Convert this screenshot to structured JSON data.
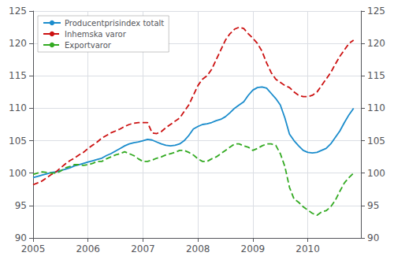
{
  "chart_data": {
    "type": "line",
    "x": [
      2005,
      2005.0833333333,
      2005.1666666667,
      2005.25,
      2005.3333333333,
      2005.4166666667,
      2005.5,
      2005.5833333333,
      2005.6666666667,
      2005.75,
      2005.8333333333,
      2005.9166666667,
      2006,
      2006.0833333333,
      2006.1666666667,
      2006.25,
      2006.3333333333,
      2006.4166666667,
      2006.5,
      2006.5833333333,
      2006.6666666667,
      2006.75,
      2006.8333333333,
      2006.9166666667,
      2007,
      2007.0833333333,
      2007.1666666667,
      2007.25,
      2007.3333333333,
      2007.4166666667,
      2007.5,
      2007.5833333333,
      2007.6666666667,
      2007.75,
      2007.8333333333,
      2007.9166666667,
      2008,
      2008.0833333333,
      2008.1666666667,
      2008.25,
      2008.3333333333,
      2008.4166666667,
      2008.5,
      2008.5833333333,
      2008.6666666667,
      2008.75,
      2008.8333333333,
      2008.9166666667,
      2009,
      2009.0833333333,
      2009.1666666667,
      2009.25,
      2009.3333333333,
      2009.4166666667,
      2009.5,
      2009.5833333333,
      2009.6666666667,
      2009.75,
      2009.8333333333,
      2009.9166666667,
      2010,
      2010.0833333333,
      2010.1666666667,
      2010.25,
      2010.3333333333,
      2010.4166666667,
      2010.5,
      2010.5833333333,
      2010.6666666667,
      2010.75,
      2010.8333333333
    ],
    "xlim": [
      2005,
      2010.9666666667
    ],
    "xticks": [
      2005,
      2006,
      2007,
      2008,
      2009,
      2010
    ],
    "ylim": [
      90,
      125
    ],
    "yticks": [
      90,
      95,
      100,
      105,
      110,
      115,
      120,
      125
    ],
    "y2lim": [
      90,
      125
    ],
    "y2ticks": [
      90,
      95,
      100,
      105,
      110,
      115,
      120,
      125
    ],
    "grid": true,
    "legend": "upper left",
    "series": [
      {
        "name": "Producentprisindex totalt",
        "color": "#1a8ccc",
        "line_style": "solid",
        "values": [
          99.3,
          99.5,
          99.7,
          99.9,
          100.1,
          100.2,
          100.4,
          100.6,
          100.8,
          101.1,
          101.3,
          101.5,
          101.7,
          101.9,
          102.1,
          102.3,
          102.7,
          103.0,
          103.4,
          103.8,
          104.2,
          104.5,
          104.7,
          104.8,
          105.0,
          105.2,
          105.1,
          104.8,
          104.5,
          104.3,
          104.2,
          104.3,
          104.5,
          105.0,
          105.8,
          106.8,
          107.2,
          107.5,
          107.6,
          107.8,
          108.1,
          108.3,
          108.7,
          109.3,
          110.0,
          110.5,
          111.0,
          112.0,
          112.8,
          113.2,
          113.3,
          113.1,
          112.3,
          111.5,
          110.5,
          108.5,
          106.0,
          105.0,
          104.2,
          103.5,
          103.2,
          103.1,
          103.2,
          103.5,
          103.8,
          104.5,
          105.5,
          106.5,
          107.8,
          109.0,
          110.0
        ]
      },
      {
        "name": "Inhemska varor",
        "color": "#cc1111",
        "line_style": "dashed",
        "values": [
          98.2,
          98.5,
          98.8,
          99.3,
          99.8,
          100.2,
          100.8,
          101.4,
          101.9,
          102.3,
          102.8,
          103.2,
          103.8,
          104.3,
          104.8,
          105.4,
          105.8,
          106.2,
          106.5,
          106.8,
          107.2,
          107.5,
          107.7,
          107.8,
          107.8,
          107.8,
          106.2,
          106.1,
          106.4,
          107.0,
          107.5,
          108.0,
          108.5,
          109.5,
          110.5,
          112.0,
          113.5,
          114.5,
          115.0,
          116.0,
          117.5,
          119.0,
          120.5,
          121.5,
          122.2,
          122.5,
          122.3,
          121.5,
          120.8,
          120.0,
          118.8,
          117.0,
          115.5,
          114.5,
          114.0,
          113.5,
          113.2,
          112.5,
          112.0,
          111.8,
          111.8,
          112.0,
          112.5,
          113.5,
          114.5,
          115.5,
          116.8,
          118.0,
          119.0,
          120.0,
          120.5
        ]
      },
      {
        "name": "Exportvaror",
        "color": "#33aa22",
        "line_style": "dashed",
        "values": [
          99.8,
          100.0,
          100.2,
          100.1,
          100.0,
          100.0,
          100.3,
          100.8,
          101.0,
          101.3,
          101.3,
          101.2,
          101.3,
          101.5,
          101.8,
          101.8,
          102.2,
          102.5,
          102.8,
          103.0,
          103.3,
          103.0,
          102.7,
          102.2,
          101.8,
          101.8,
          102.0,
          102.3,
          102.5,
          102.8,
          103.0,
          103.2,
          103.5,
          103.5,
          103.2,
          102.8,
          102.2,
          101.8,
          101.8,
          102.2,
          102.5,
          103.0,
          103.5,
          104.0,
          104.5,
          104.5,
          104.2,
          104.0,
          103.5,
          103.8,
          104.2,
          104.5,
          104.5,
          104.3,
          103.0,
          101.0,
          97.8,
          96.0,
          95.5,
          94.8,
          94.3,
          93.8,
          93.5,
          94.0,
          94.2,
          94.8,
          95.8,
          97.2,
          98.5,
          99.3,
          100.0
        ]
      }
    ]
  }
}
